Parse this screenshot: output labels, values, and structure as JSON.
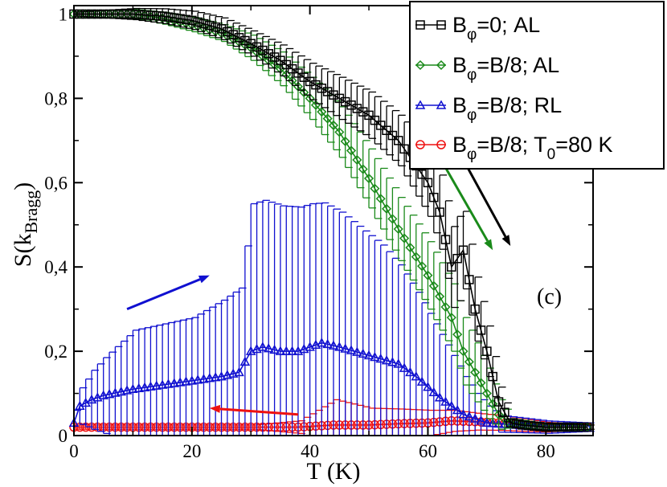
{
  "chart_data": {
    "type": "line",
    "title": "",
    "xlabel": "T (K)",
    "ylabel": {
      "main": "S(k",
      "sub": "Bragg",
      "close": ")"
    },
    "xlim": [
      0,
      88
    ],
    "ylim": [
      0,
      1.02
    ],
    "xticks": [
      0,
      20,
      40,
      60,
      80
    ],
    "yticks": [
      0,
      0.2,
      0.4,
      0.6,
      0.8,
      1.0
    ],
    "ytick_labels": [
      "0",
      "0,2",
      "0,4",
      "0,6",
      "0,8",
      "1"
    ],
    "annotation": "(c)",
    "legend_position": "top-right",
    "series": [
      {
        "key": "al0",
        "color": "#000000",
        "marker": "square",
        "legend": {
          "main": "B",
          "sub": "φ",
          "rest": "=0; AL"
        },
        "anchors": [
          [
            0,
            1.0
          ],
          [
            10,
            1.0
          ],
          [
            15,
            0.995
          ],
          [
            20,
            0.985
          ],
          [
            25,
            0.965
          ],
          [
            30,
            0.93
          ],
          [
            35,
            0.89
          ],
          [
            40,
            0.84
          ],
          [
            45,
            0.8
          ],
          [
            50,
            0.76
          ],
          [
            55,
            0.7
          ],
          [
            60,
            0.6
          ],
          [
            62,
            0.53
          ],
          [
            64,
            0.4
          ],
          [
            66,
            0.44
          ],
          [
            68,
            0.3
          ],
          [
            70,
            0.2
          ],
          [
            72,
            0.08
          ],
          [
            74,
            0.03
          ],
          [
            76,
            0.025
          ],
          [
            80,
            0.02
          ],
          [
            87,
            0.02
          ]
        ],
        "error_anchors": [
          [
            0,
            0.005
          ],
          [
            30,
            0.03
          ],
          [
            45,
            0.05
          ],
          [
            55,
            0.06
          ],
          [
            65,
            0.1
          ],
          [
            70,
            0.06
          ],
          [
            74,
            0.01
          ],
          [
            87,
            0.005
          ]
        ]
      },
      {
        "key": "al8",
        "color": "#1a8a1a",
        "marker": "diamond",
        "legend": {
          "main": "B",
          "sub": "φ",
          "rest": "=B/8; AL"
        },
        "anchors": [
          [
            0,
            1.0
          ],
          [
            10,
            1.0
          ],
          [
            15,
            0.99
          ],
          [
            20,
            0.975
          ],
          [
            25,
            0.955
          ],
          [
            30,
            0.92
          ],
          [
            35,
            0.87
          ],
          [
            40,
            0.8
          ],
          [
            45,
            0.72
          ],
          [
            50,
            0.61
          ],
          [
            55,
            0.49
          ],
          [
            60,
            0.38
          ],
          [
            62,
            0.33
          ],
          [
            64,
            0.28
          ],
          [
            66,
            0.2
          ],
          [
            68,
            0.15
          ],
          [
            70,
            0.1
          ],
          [
            72,
            0.05
          ],
          [
            74,
            0.03
          ],
          [
            80,
            0.02
          ],
          [
            87,
            0.02
          ]
        ],
        "error_anchors": [
          [
            0,
            0.005
          ],
          [
            25,
            0.02
          ],
          [
            40,
            0.05
          ],
          [
            50,
            0.07
          ],
          [
            60,
            0.08
          ],
          [
            66,
            0.08
          ],
          [
            70,
            0.06
          ],
          [
            74,
            0.01
          ],
          [
            87,
            0.005
          ]
        ]
      },
      {
        "key": "rl8",
        "color": "#1010d0",
        "marker": "triangle",
        "legend": {
          "main": "B",
          "sub": "φ",
          "rest": "=B/8; RL"
        },
        "anchors": [
          [
            0,
            0.03
          ],
          [
            1,
            0.07
          ],
          [
            3,
            0.085
          ],
          [
            5,
            0.095
          ],
          [
            10,
            0.11
          ],
          [
            15,
            0.12
          ],
          [
            20,
            0.13
          ],
          [
            25,
            0.14
          ],
          [
            28,
            0.15
          ],
          [
            30,
            0.2
          ],
          [
            32,
            0.21
          ],
          [
            35,
            0.2
          ],
          [
            38,
            0.2
          ],
          [
            40,
            0.21
          ],
          [
            42,
            0.22
          ],
          [
            45,
            0.21
          ],
          [
            50,
            0.19
          ],
          [
            55,
            0.17
          ],
          [
            58,
            0.14
          ],
          [
            62,
            0.09
          ],
          [
            66,
            0.05
          ],
          [
            70,
            0.03
          ],
          [
            75,
            0.025
          ],
          [
            80,
            0.02
          ],
          [
            87,
            0.02
          ]
        ],
        "error_anchors": [
          [
            0,
            0.03
          ],
          [
            3,
            0.07
          ],
          [
            10,
            0.14
          ],
          [
            20,
            0.15
          ],
          [
            28,
            0.2
          ],
          [
            30,
            0.35
          ],
          [
            40,
            0.34
          ],
          [
            45,
            0.32
          ],
          [
            52,
            0.27
          ],
          [
            58,
            0.2
          ],
          [
            62,
            0.15
          ],
          [
            68,
            0.06
          ],
          [
            72,
            0.02
          ],
          [
            87,
            0.01
          ]
        ]
      },
      {
        "key": "t80",
        "color": "#ee1111",
        "marker": "circle",
        "legend": {
          "main": "B",
          "sub": "φ",
          "rest": "=B/8; T",
          "sub2": "0",
          "rest2": "=80 K"
        },
        "anchors": [
          [
            0,
            0.02
          ],
          [
            10,
            0.02
          ],
          [
            20,
            0.02
          ],
          [
            30,
            0.02
          ],
          [
            38,
            0.02
          ],
          [
            44,
            0.025
          ],
          [
            50,
            0.025
          ],
          [
            55,
            0.028
          ],
          [
            60,
            0.03
          ],
          [
            64,
            0.035
          ],
          [
            68,
            0.033
          ],
          [
            72,
            0.03
          ],
          [
            76,
            0.025
          ],
          [
            80,
            0.02
          ],
          [
            87,
            0.02
          ]
        ],
        "error_anchors": [
          [
            0,
            0.005
          ],
          [
            30,
            0.005
          ],
          [
            38,
            0.015
          ],
          [
            44,
            0.06
          ],
          [
            50,
            0.04
          ],
          [
            60,
            0.03
          ],
          [
            68,
            0.02
          ],
          [
            76,
            0.015
          ],
          [
            87,
            0.005
          ]
        ]
      }
    ],
    "arrows": [
      {
        "color": "#000000",
        "from": [
          65,
          0.68
        ],
        "to": [
          74,
          0.45
        ]
      },
      {
        "color": "#1a8a1a",
        "from": [
          62,
          0.66
        ],
        "to": [
          71,
          0.44
        ]
      },
      {
        "color": "#1010d0",
        "from": [
          9,
          0.3
        ],
        "to": [
          23,
          0.38
        ]
      },
      {
        "color": "#ee1111",
        "from": [
          38,
          0.05
        ],
        "to": [
          23,
          0.065
        ]
      }
    ]
  }
}
